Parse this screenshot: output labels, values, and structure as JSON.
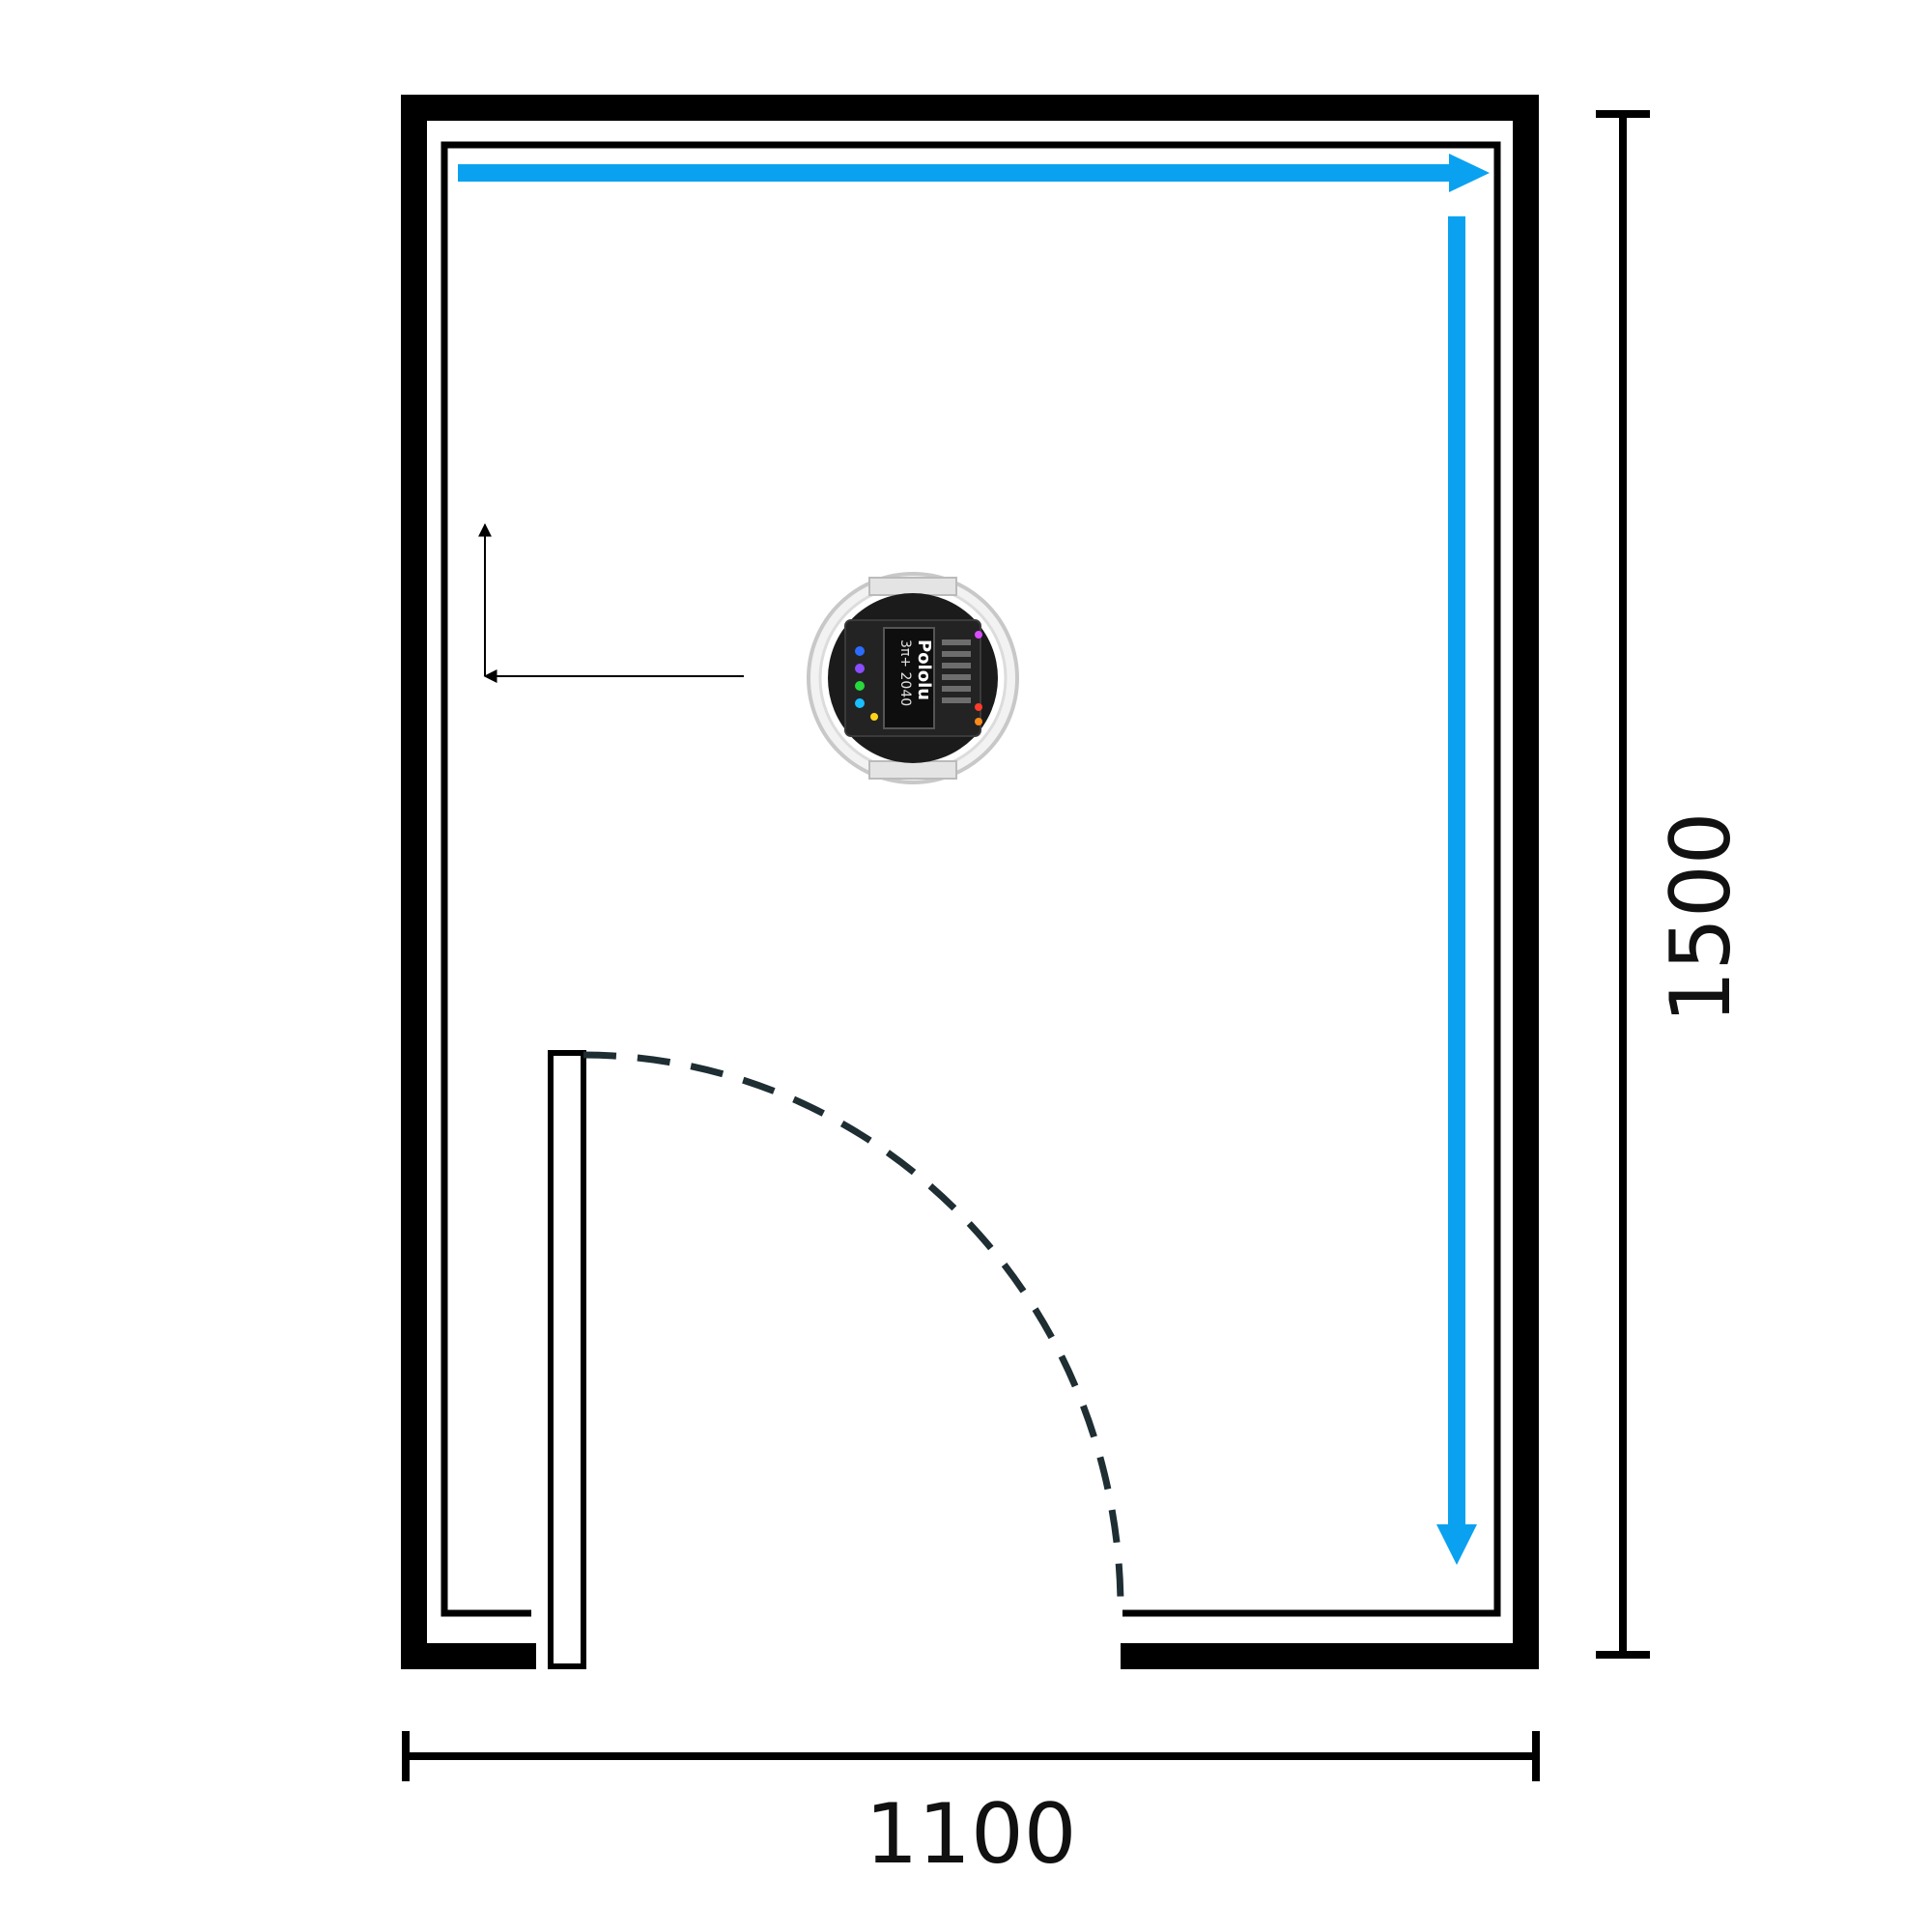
{
  "diagram": {
    "dimensions": {
      "width_label": "1100",
      "height_label": "1500"
    },
    "robot": {
      "brand": "Pololu",
      "model": "3π+ 2040",
      "icon": "robot-icon"
    },
    "colors": {
      "path": "#0aa2f0",
      "walls": "#000000",
      "door_swing": "#1e2e33"
    }
  }
}
